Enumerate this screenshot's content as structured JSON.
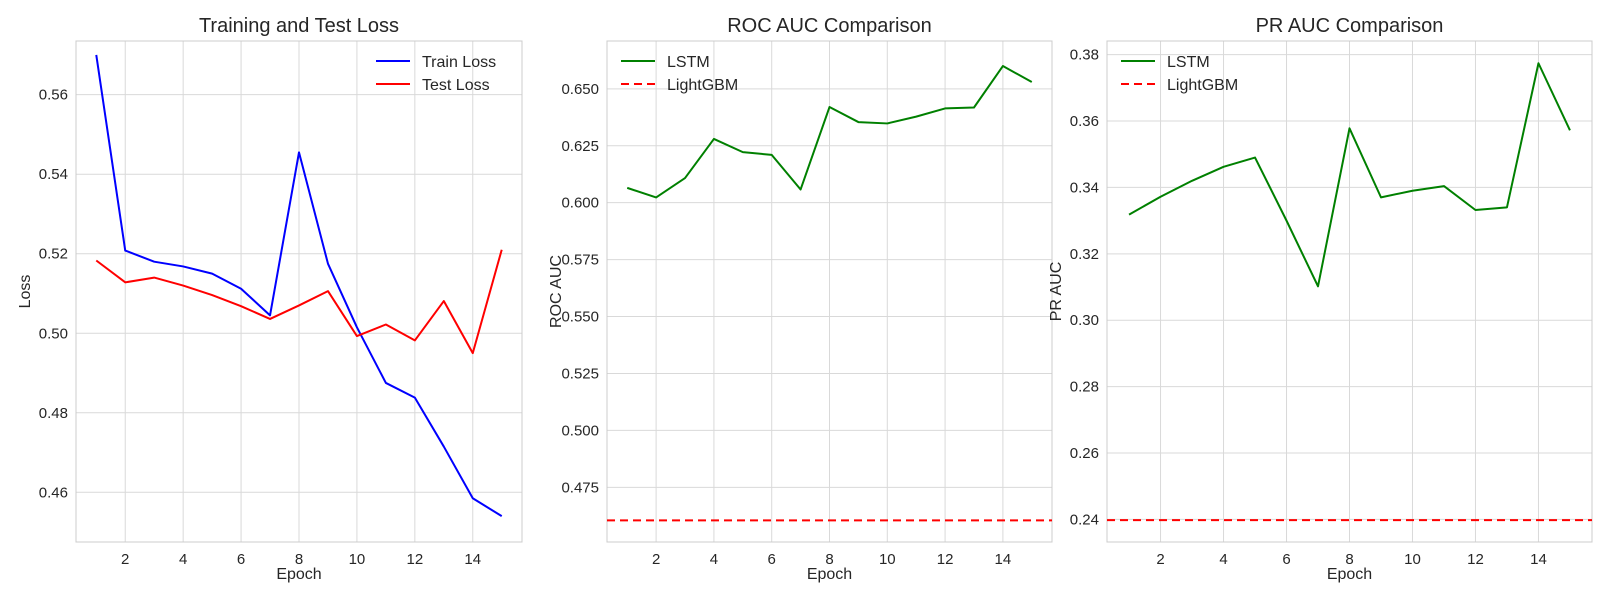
{
  "chart_data": [
    {
      "type": "line",
      "title": "Training and Test Loss",
      "xlabel": "Epoch",
      "ylabel": "Loss",
      "xlim": [
        0.3,
        15.7
      ],
      "ylim": [
        0.4475,
        0.5735
      ],
      "xticks": [
        2,
        4,
        6,
        8,
        10,
        12,
        14
      ],
      "yticks": [
        0.46,
        0.48,
        0.5,
        0.52,
        0.54,
        0.56
      ],
      "ytick_decimals": 2,
      "grid": true,
      "legend": "top-right",
      "x": [
        1,
        2,
        3,
        4,
        5,
        6,
        7,
        8,
        9,
        10,
        11,
        12,
        13,
        14,
        15
      ],
      "series": [
        {
          "name": "Train Loss",
          "color": "#0000ff",
          "style": "solid",
          "values": [
            0.57,
            0.5208,
            0.518,
            0.5168,
            0.515,
            0.5112,
            0.5045,
            0.5455,
            0.5175,
            0.5015,
            0.4875,
            0.4838,
            0.4715,
            0.4585,
            0.454
          ]
        },
        {
          "name": "Test Loss",
          "color": "#ff0000",
          "style": "solid",
          "values": [
            0.5183,
            0.5128,
            0.514,
            0.512,
            0.5096,
            0.5068,
            0.5036,
            0.507,
            0.5106,
            0.4993,
            0.5022,
            0.4982,
            0.5081,
            0.495,
            0.521
          ]
        }
      ]
    },
    {
      "type": "line",
      "title": "ROC AUC Comparison",
      "xlabel": "Epoch",
      "ylabel": "ROC AUC",
      "xlim": [
        0.3,
        15.7
      ],
      "ylim": [
        0.451,
        0.671
      ],
      "xticks": [
        2,
        4,
        6,
        8,
        10,
        12,
        14
      ],
      "yticks": [
        0.475,
        0.5,
        0.525,
        0.55,
        0.575,
        0.6,
        0.625,
        0.65
      ],
      "ytick_decimals": 3,
      "grid": true,
      "legend": "top-left",
      "x": [
        1,
        2,
        3,
        4,
        5,
        6,
        7,
        8,
        9,
        10,
        11,
        12,
        13,
        14,
        15
      ],
      "series": [
        {
          "name": "LSTM",
          "color": "#008000",
          "style": "solid",
          "values": [
            0.6065,
            0.6023,
            0.6108,
            0.628,
            0.6222,
            0.621,
            0.6058,
            0.642,
            0.6354,
            0.6348,
            0.6378,
            0.6414,
            0.6418,
            0.66,
            0.653
          ]
        },
        {
          "name": "LightGBM",
          "color": "#ff0000",
          "style": "dashed",
          "hline": 0.4605
        }
      ]
    },
    {
      "type": "line",
      "title": "PR AUC Comparison",
      "xlabel": "Epoch",
      "ylabel": "PR AUC",
      "xlim": [
        0.3,
        15.7
      ],
      "ylim": [
        0.2332,
        0.3841
      ],
      "xticks": [
        2,
        4,
        6,
        8,
        10,
        12,
        14
      ],
      "yticks": [
        0.24,
        0.26,
        0.28,
        0.3,
        0.32,
        0.34,
        0.36,
        0.38
      ],
      "ytick_decimals": 2,
      "grid": true,
      "legend": "top-left",
      "x": [
        1,
        2,
        3,
        4,
        5,
        6,
        7,
        8,
        9,
        10,
        11,
        12,
        13,
        14,
        15
      ],
      "series": [
        {
          "name": "LSTM",
          "color": "#008000",
          "style": "solid",
          "values": [
            0.3318,
            0.3372,
            0.342,
            0.3462,
            0.349,
            0.33,
            0.3102,
            0.3578,
            0.337,
            0.339,
            0.3404,
            0.3332,
            0.334,
            0.3774,
            0.3572
          ]
        },
        {
          "name": "LightGBM",
          "color": "#ff0000",
          "style": "dashed",
          "hline": 0.2398
        }
      ]
    }
  ]
}
